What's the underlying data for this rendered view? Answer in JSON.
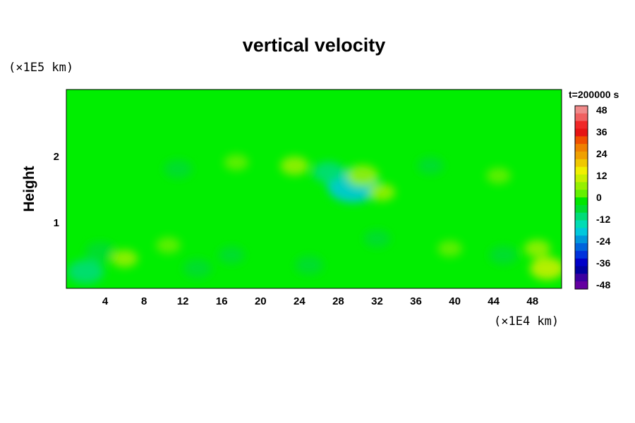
{
  "chart_data": {
    "type": "heatmap",
    "title": "vertical velocity",
    "ylabel": "Height",
    "x_unit_label": "(×1E4 km)",
    "y_unit_label": "(×1E5 km)",
    "time_label": "t=200000 s",
    "x_ticks": [
      4,
      8,
      12,
      16,
      20,
      24,
      28,
      32,
      36,
      40,
      44,
      48
    ],
    "y_ticks": [
      1,
      2
    ],
    "xlim": [
      0,
      51
    ],
    "ylim": [
      0,
      3
    ],
    "colorbar": {
      "ticks": [
        48,
        36,
        24,
        12,
        0,
        -12,
        -24,
        -36,
        -48
      ],
      "range": [
        -48,
        48
      ],
      "colors": [
        "#f08a8a",
        "#f06060",
        "#f02828",
        "#e61414",
        "#f05000",
        "#f08000",
        "#f0a000",
        "#f0c800",
        "#f0f000",
        "#c8f000",
        "#96f000",
        "#64f000",
        "#00e600",
        "#00dc32",
        "#00dc78",
        "#00dcb4",
        "#00c8dc",
        "#0096dc",
        "#0064dc",
        "#0032dc",
        "#0000c8",
        "#0000a0",
        "#3c00a0",
        "#6400a0"
      ]
    },
    "features": [
      {
        "x": 29.5,
        "y": 1.55,
        "value": -18
      },
      {
        "x": 30.5,
        "y": 1.7,
        "value": 8
      },
      {
        "x": 32.5,
        "y": 1.45,
        "value": 5
      },
      {
        "x": 23.5,
        "y": 1.85,
        "value": 6
      },
      {
        "x": 27.0,
        "y": 1.75,
        "value": -8
      },
      {
        "x": 2.0,
        "y": 0.25,
        "value": -10
      },
      {
        "x": 3.5,
        "y": 0.55,
        "value": -7
      },
      {
        "x": 6.0,
        "y": 0.45,
        "value": 5
      },
      {
        "x": 10.5,
        "y": 0.65,
        "value": 4
      },
      {
        "x": 13.5,
        "y": 0.3,
        "value": -6
      },
      {
        "x": 17.0,
        "y": 0.5,
        "value": -5
      },
      {
        "x": 25.0,
        "y": 0.35,
        "value": -6
      },
      {
        "x": 32.0,
        "y": 0.75,
        "value": -5
      },
      {
        "x": 39.5,
        "y": 0.6,
        "value": 4
      },
      {
        "x": 45.0,
        "y": 0.5,
        "value": -6
      },
      {
        "x": 49.5,
        "y": 0.3,
        "value": 9
      },
      {
        "x": 48.5,
        "y": 0.6,
        "value": 5
      },
      {
        "x": 11.5,
        "y": 1.8,
        "value": -6
      },
      {
        "x": 17.5,
        "y": 1.9,
        "value": 4
      },
      {
        "x": 37.5,
        "y": 1.85,
        "value": -5
      },
      {
        "x": 44.5,
        "y": 1.7,
        "value": 4
      }
    ]
  }
}
